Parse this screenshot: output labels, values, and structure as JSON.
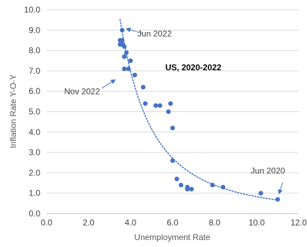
{
  "chart_data": {
    "type": "scatter",
    "inner_title": "US, 2020-2022",
    "xlabel": "Unemployment Rate",
    "ylabel": "Inflation Rate Y-O-Y",
    "xlim": [
      0,
      12
    ],
    "ylim": [
      0,
      10
    ],
    "x_ticks": [
      "0.0",
      "2.0",
      "4.0",
      "6.0",
      "8.0",
      "10.0",
      "12.0"
    ],
    "y_ticks": [
      "0.0",
      "1.0",
      "2.0",
      "3.0",
      "4.0",
      "5.0",
      "6.0",
      "7.0",
      "8.0",
      "9.0",
      "10.0"
    ],
    "x_tick_values": [
      0,
      2,
      4,
      6,
      8,
      10,
      12
    ],
    "y_tick_values": [
      0,
      1,
      2,
      3,
      4,
      5,
      6,
      7,
      8,
      9,
      10
    ],
    "grid": "horizontal",
    "point_color": "#4472C4",
    "trendline": {
      "style": "dotted",
      "color": "#4472C4",
      "fit": "power"
    },
    "points": [
      {
        "x": 11.0,
        "y": 0.7
      },
      {
        "x": 10.2,
        "y": 1.0
      },
      {
        "x": 8.4,
        "y": 1.3
      },
      {
        "x": 7.9,
        "y": 1.4
      },
      {
        "x": 6.9,
        "y": 1.2
      },
      {
        "x": 6.7,
        "y": 1.2
      },
      {
        "x": 6.7,
        "y": 1.3
      },
      {
        "x": 6.4,
        "y": 1.4
      },
      {
        "x": 6.2,
        "y": 1.7
      },
      {
        "x": 6.0,
        "y": 2.6
      },
      {
        "x": 6.0,
        "y": 4.2
      },
      {
        "x": 5.9,
        "y": 5.4
      },
      {
        "x": 5.8,
        "y": 5.0
      },
      {
        "x": 5.4,
        "y": 5.3
      },
      {
        "x": 5.2,
        "y": 5.3
      },
      {
        "x": 4.7,
        "y": 5.4
      },
      {
        "x": 4.6,
        "y": 6.2
      },
      {
        "x": 4.2,
        "y": 6.8
      },
      {
        "x": 4.0,
        "y": 7.5
      },
      {
        "x": 3.9,
        "y": 7.1
      },
      {
        "x": 3.8,
        "y": 7.9
      },
      {
        "x": 3.7,
        "y": 7.7
      },
      {
        "x": 3.7,
        "y": 7.1
      },
      {
        "x": 3.7,
        "y": 8.2
      },
      {
        "x": 3.6,
        "y": 8.3
      },
      {
        "x": 3.6,
        "y": 8.5
      },
      {
        "x": 3.6,
        "y": 9.0
      },
      {
        "x": 3.5,
        "y": 8.3
      },
      {
        "x": 3.5,
        "y": 8.5
      }
    ],
    "annotations": [
      {
        "text": "Jun 2022",
        "point": {
          "x": 3.6,
          "y": 9.0
        }
      },
      {
        "text": "Nov 2022",
        "point": {
          "x": 3.5,
          "y": 6.7
        }
      },
      {
        "text": "Jun 2020",
        "point": {
          "x": 11.0,
          "y": 0.7
        }
      }
    ]
  }
}
